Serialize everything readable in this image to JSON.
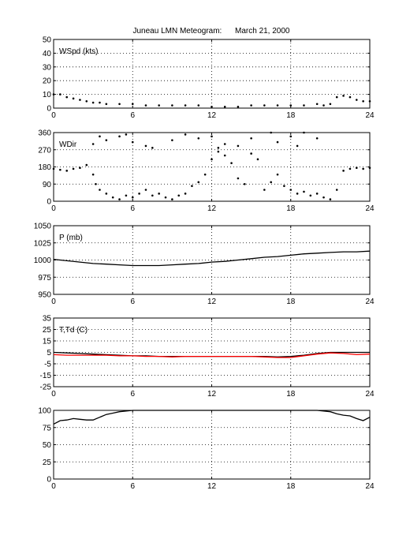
{
  "title": "Juneau LMN Meteogram:      March 21, 2000",
  "chart_data": [
    {
      "type": "scatter",
      "label": "WSpd (kts)",
      "xlim": [
        0,
        24
      ],
      "ylim": [
        0,
        50
      ],
      "xticks": [
        0,
        6,
        12,
        18,
        24
      ],
      "yticks": [
        0,
        10,
        20,
        30,
        40,
        50
      ],
      "grid": true,
      "series": [
        {
          "color": "#000000",
          "x": [
            0,
            0.5,
            1,
            1.5,
            2,
            2.5,
            3,
            3.5,
            4,
            5,
            6,
            7,
            8,
            9,
            10,
            11,
            12,
            13,
            14,
            15,
            16,
            17,
            18,
            19,
            20,
            20.5,
            21,
            21.5,
            22,
            22.5,
            23,
            23.5,
            24
          ],
          "y": [
            10,
            10,
            8,
            7,
            6,
            5,
            4,
            4,
            3,
            3,
            3,
            2,
            2,
            2,
            2,
            2,
            1,
            1,
            1,
            2,
            2,
            2,
            2,
            2,
            3,
            2,
            3,
            8,
            9,
            8,
            6,
            5,
            5
          ]
        }
      ]
    },
    {
      "type": "scatter",
      "label": "WDir",
      "xlim": [
        0,
        24
      ],
      "ylim": [
        0,
        360
      ],
      "xticks": [
        0,
        6,
        12,
        18,
        24
      ],
      "yticks": [
        0,
        90,
        180,
        270,
        360
      ],
      "grid": true,
      "series": [
        {
          "color": "#000000",
          "x": [
            0,
            0.5,
            1,
            1.5,
            2,
            2.5,
            3,
            3.2,
            3.5,
            4,
            4.5,
            5,
            5.5,
            6,
            6.5,
            7,
            7.5,
            8,
            8.5,
            9,
            9.5,
            10,
            10.5,
            11,
            11.5,
            12,
            12.5,
            13,
            13.5,
            14,
            14.5,
            15,
            15.5,
            16,
            16.5,
            17,
            17.5,
            18,
            18.5,
            19,
            19.5,
            20,
            20.5,
            21,
            21.5,
            22,
            22.5,
            23,
            23.5,
            24
          ],
          "y": [
            170,
            165,
            160,
            170,
            175,
            190,
            140,
            90,
            60,
            40,
            20,
            10,
            30,
            20,
            40,
            60,
            30,
            40,
            20,
            10,
            30,
            40,
            80,
            100,
            140,
            220,
            260,
            240,
            200,
            120,
            90,
            250,
            220,
            60,
            100,
            140,
            80,
            60,
            40,
            50,
            30,
            40,
            20,
            10,
            60,
            160,
            170,
            175,
            170,
            175
          ]
        },
        {
          "color": "#000000",
          "x": [
            3,
            3.5,
            4,
            5,
            5.5,
            6,
            7,
            7.5,
            9,
            10,
            11,
            12,
            12.5,
            13,
            14,
            15,
            16.5,
            17,
            18,
            18.5,
            19,
            20
          ],
          "y": [
            300,
            340,
            320,
            340,
            350,
            310,
            290,
            280,
            320,
            350,
            330,
            340,
            280,
            300,
            290,
            330,
            360,
            310,
            340,
            290,
            360,
            330
          ]
        }
      ]
    },
    {
      "type": "line",
      "label": "P (mb)",
      "xlim": [
        0,
        24
      ],
      "ylim": [
        950,
        1050
      ],
      "xticks": [
        0,
        6,
        12,
        18,
        24
      ],
      "yticks": [
        950,
        975,
        1000,
        1025,
        1050
      ],
      "grid": true,
      "series": [
        {
          "color": "#000000",
          "x": [
            0,
            1,
            2,
            3,
            4,
            5,
            6,
            7,
            8,
            9,
            10,
            11,
            12,
            13,
            14,
            15,
            16,
            17,
            18,
            19,
            20,
            21,
            22,
            23,
            24
          ],
          "y": [
            1001,
            999,
            997,
            995,
            994,
            993,
            992,
            992,
            992,
            993,
            994,
            995,
            997,
            998,
            1000,
            1002,
            1004,
            1005,
            1007,
            1009,
            1010,
            1011,
            1012,
            1012,
            1013
          ]
        }
      ]
    },
    {
      "type": "line",
      "label": "T,Td (C)",
      "xlim": [
        0,
        24
      ],
      "ylim": [
        -25,
        35
      ],
      "xticks": [
        0,
        6,
        12,
        18,
        24
      ],
      "yticks": [
        -25,
        -15,
        -5,
        5,
        15,
        25,
        35
      ],
      "grid": true,
      "series": [
        {
          "color": "#000000",
          "x": [
            0,
            1,
            2,
            3,
            4,
            5,
            6,
            7,
            8,
            9,
            10,
            11,
            12,
            13,
            14,
            15,
            16,
            17,
            18,
            19,
            20,
            21,
            22,
            23,
            24
          ],
          "y": [
            5,
            4.5,
            4,
            3.5,
            3,
            2.5,
            2,
            2,
            1.5,
            1.5,
            1.5,
            1.5,
            1.5,
            1.5,
            1.5,
            1.5,
            1.5,
            1,
            1.5,
            2.5,
            4,
            5,
            5,
            5,
            5
          ]
        },
        {
          "color": "#ff0000",
          "x": [
            0,
            1,
            2,
            3,
            4,
            5,
            6,
            7,
            8,
            9,
            10,
            11,
            12,
            13,
            14,
            15,
            16,
            17,
            18,
            19,
            20,
            21,
            22,
            23,
            24
          ],
          "y": [
            3,
            2.5,
            2.5,
            2.5,
            2.5,
            2,
            2,
            1.5,
            1.5,
            1,
            1.5,
            1.5,
            1.5,
            1.5,
            1.5,
            1.5,
            1,
            0.5,
            0.5,
            2,
            3.5,
            4.5,
            4,
            3,
            3.5
          ]
        }
      ]
    },
    {
      "type": "line",
      "label": "",
      "xlim": [
        0,
        24
      ],
      "ylim": [
        0,
        100
      ],
      "xticks": [
        0,
        6,
        12,
        18,
        24
      ],
      "yticks": [
        0,
        25,
        50,
        75,
        100
      ],
      "grid": true,
      "series": [
        {
          "color": "#000000",
          "x": [
            0,
            0.5,
            1,
            1.5,
            2,
            2.5,
            3,
            3.5,
            4,
            4.5,
            5,
            5.5,
            6,
            6.5,
            7,
            16,
            18,
            20,
            21,
            21.5,
            22,
            22.5,
            23,
            23.5,
            24
          ],
          "y": [
            80,
            85,
            86,
            88,
            87,
            86,
            86,
            90,
            94,
            96,
            98,
            99,
            100,
            100,
            100,
            100,
            100,
            100,
            98,
            95,
            93,
            92,
            88,
            85,
            90
          ]
        }
      ]
    }
  ]
}
